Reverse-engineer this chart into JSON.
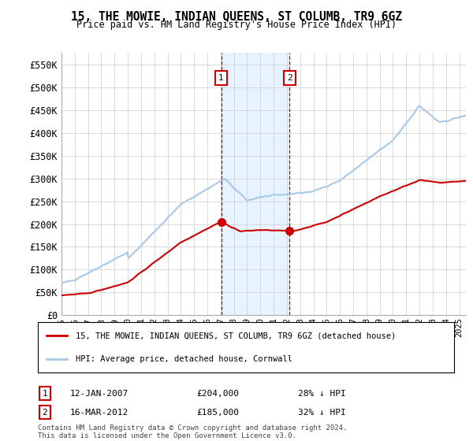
{
  "title": "15, THE MOWIE, INDIAN QUEENS, ST COLUMB, TR9 6GZ",
  "subtitle": "Price paid vs. HM Land Registry's House Price Index (HPI)",
  "ylim": [
    0,
    575000
  ],
  "yticks": [
    0,
    50000,
    100000,
    150000,
    200000,
    250000,
    300000,
    350000,
    400000,
    450000,
    500000,
    550000
  ],
  "ytick_labels": [
    "£0",
    "£50K",
    "£100K",
    "£150K",
    "£200K",
    "£250K",
    "£300K",
    "£350K",
    "£400K",
    "£450K",
    "£500K",
    "£550K"
  ],
  "sale1_date": 2007.04,
  "sale1_price": 204000,
  "sale1_label": "1",
  "sale1_text": "12-JAN-2007",
  "sale1_amount": "£204,000",
  "sale1_hpi": "28% ↓ HPI",
  "sale2_date": 2012.21,
  "sale2_price": 185000,
  "sale2_label": "2",
  "sale2_text": "16-MAR-2012",
  "sale2_amount": "£185,000",
  "sale2_hpi": "32% ↓ HPI",
  "hpi_color": "#a8c8e8",
  "sale_color": "#cc0000",
  "shade_color": "#ddeeff",
  "legend_property_label": "15, THE MOWIE, INDIAN QUEENS, ST COLUMB, TR9 6GZ (detached house)",
  "legend_hpi_label": "HPI: Average price, detached house, Cornwall",
  "footnote1": "Contains HM Land Registry data © Crown copyright and database right 2024.",
  "footnote2": "This data is licensed under the Open Government Licence v3.0.",
  "xstart": 1995,
  "xend": 2025,
  "xticks": [
    1995,
    1996,
    1997,
    1998,
    1999,
    2000,
    2001,
    2002,
    2003,
    2004,
    2005,
    2006,
    2007,
    2008,
    2009,
    2010,
    2011,
    2012,
    2013,
    2014,
    2015,
    2016,
    2017,
    2018,
    2019,
    2020,
    2021,
    2022,
    2023,
    2024,
    2025
  ]
}
